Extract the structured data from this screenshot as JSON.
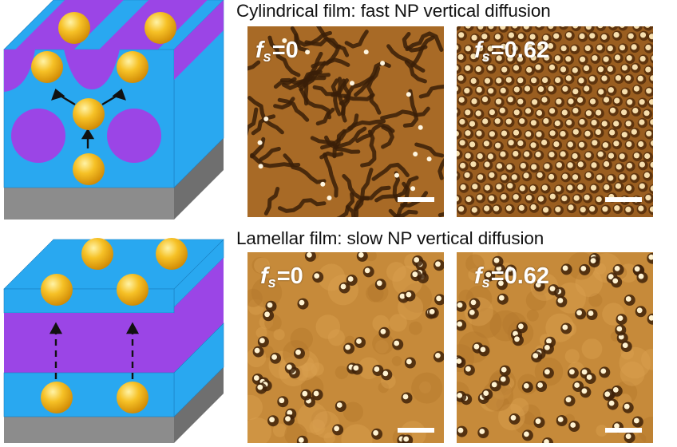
{
  "colors": {
    "matrix": "#29a8f0",
    "domain": "#9b45e6",
    "substrate": "#8c8c8c",
    "nanoparticle": "#f2b91a",
    "cyl_afm_dark": "#3a1e08",
    "cyl_afm_base": "#a86a26",
    "lam_afm_base": "#c68a3a"
  },
  "titles": {
    "cylindrical": "Cylindrical film: fast NP vertical diffusion",
    "lamellar": "Lamellar film: slow NP vertical diffusion"
  },
  "panels": {
    "cyl_a": {
      "f": "f",
      "sub": "s",
      "value": "=0"
    },
    "cyl_b": {
      "f": "f",
      "sub": "s",
      "value": "=0.62"
    },
    "lam_a": {
      "f": "f",
      "sub": "s",
      "value": "=0"
    },
    "lam_b": {
      "f": "f",
      "sub": "s",
      "value": "=0.62"
    }
  }
}
